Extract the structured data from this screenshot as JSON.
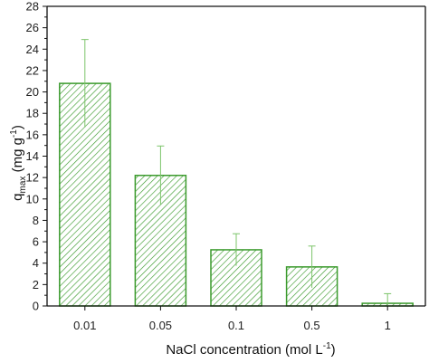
{
  "chart_data": {
    "type": "bar",
    "categories": [
      "0.01",
      "0.05",
      "0.1",
      "0.5",
      "1"
    ],
    "values": [
      20.8,
      12.2,
      5.25,
      3.65,
      0.25
    ],
    "errors": [
      4.1,
      2.75,
      1.5,
      1.95,
      0.9
    ],
    "ylim": [
      0,
      28
    ],
    "yticks": [
      "0",
      "2",
      "4",
      "6",
      "8",
      "10",
      "12",
      "14",
      "16",
      "18",
      "20",
      "22",
      "24",
      "26",
      "28"
    ],
    "xlabel": {
      "main": "NaCl concentration (mol L",
      "sup": "-1",
      "end": ")"
    },
    "ylabel": {
      "q": "q",
      "sub": "max",
      "mid": " (mg g",
      "sup": "-1",
      "end": ")"
    },
    "colors": {
      "bar": "#3a9a2c",
      "error": "#7cc46a",
      "axis": "#111111"
    }
  }
}
